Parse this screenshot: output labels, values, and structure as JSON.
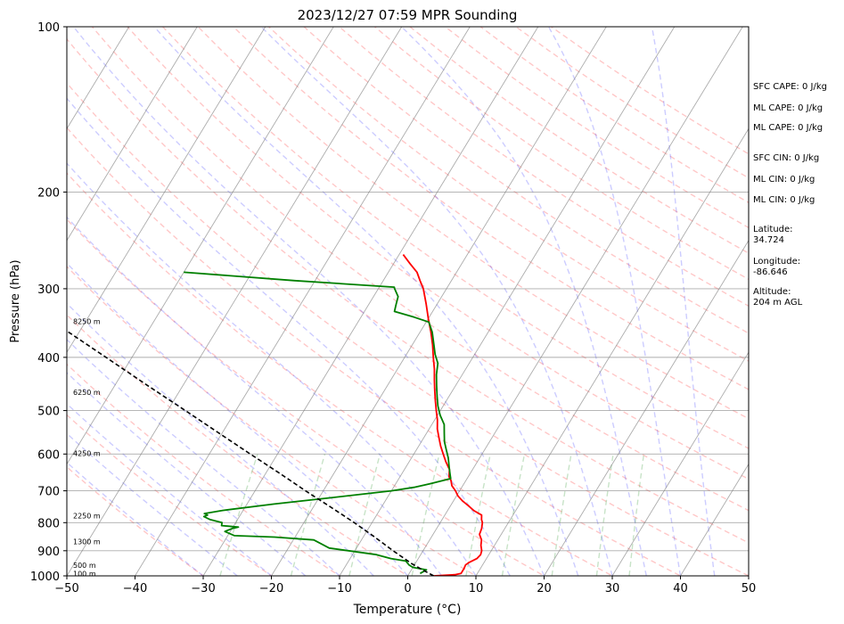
{
  "chart_data": {
    "type": "line",
    "title": "2023/12/27 07:59 MPR Sounding",
    "xlabel": "Temperature (°C)",
    "ylabel": "Pressure (hPa)",
    "xlim": [
      -50,
      50
    ],
    "ylim": [
      1000,
      100
    ],
    "y_scale": "log",
    "skew": true,
    "x_ticks": [
      -50,
      -40,
      -30,
      -20,
      -10,
      0,
      10,
      20,
      30,
      40,
      50
    ],
    "x_tick_labels": [
      "−50",
      "−40",
      "−30",
      "−20",
      "−10",
      "0",
      "10",
      "20",
      "30",
      "40",
      "50"
    ],
    "y_ticks": [
      1000,
      900,
      800,
      700,
      600,
      500,
      400,
      300,
      200,
      100
    ],
    "y_tick_labels": [
      "1000",
      "900",
      "800",
      "700",
      "600",
      "500",
      "400",
      "300",
      "200",
      "100"
    ],
    "grid": true,
    "height_labels": [
      {
        "p": 995,
        "text": "100 m"
      },
      {
        "p": 960,
        "text": "500 m"
      },
      {
        "p": 870,
        "text": "1300 m"
      },
      {
        "p": 780,
        "text": "2250 m"
      },
      {
        "p": 600,
        "text": "4250 m"
      },
      {
        "p": 465,
        "text": "6250 m"
      },
      {
        "p": 345,
        "text": "8250 m"
      }
    ],
    "series": [
      {
        "color": "#ff0000",
        "points": [
          [
            1000,
            3.8
          ],
          [
            995,
            6.8
          ],
          [
            990,
            7.6
          ],
          [
            970,
            7.6
          ],
          [
            955,
            7.5
          ],
          [
            945,
            7.8
          ],
          [
            930,
            8.6
          ],
          [
            915,
            8.8
          ],
          [
            900,
            8.6
          ],
          [
            880,
            8.0
          ],
          [
            860,
            7.6
          ],
          [
            840,
            6.8
          ],
          [
            820,
            6.6
          ],
          [
            800,
            6.2
          ],
          [
            790,
            5.8
          ],
          [
            775,
            5.4
          ],
          [
            760,
            3.8
          ],
          [
            745,
            2.6
          ],
          [
            730,
            1.3
          ],
          [
            715,
            0.2
          ],
          [
            700,
            -0.6
          ],
          [
            685,
            -1.6
          ],
          [
            670,
            -2.2
          ],
          [
            660,
            -2.8
          ],
          [
            640,
            -3.4
          ],
          [
            620,
            -4.6
          ],
          [
            600,
            -5.7
          ],
          [
            580,
            -6.8
          ],
          [
            560,
            -7.8
          ],
          [
            540,
            -8.8
          ],
          [
            520,
            -9.6
          ],
          [
            500,
            -10.6
          ],
          [
            480,
            -11.6
          ],
          [
            460,
            -12.6
          ],
          [
            440,
            -13.6
          ],
          [
            420,
            -14.6
          ],
          [
            400,
            -15.8
          ],
          [
            380,
            -17.0
          ],
          [
            360,
            -18.4
          ],
          [
            340,
            -20.0
          ],
          [
            320,
            -21.6
          ],
          [
            300,
            -23.4
          ],
          [
            290,
            -24.6
          ],
          [
            280,
            -25.8
          ],
          [
            270,
            -27.6
          ],
          [
            260,
            -29.4
          ]
        ]
      },
      {
        "color": "#008000",
        "points": [
          [
            990,
            1.6
          ],
          [
            975,
            2.2
          ],
          [
            965,
            0.0
          ],
          [
            955,
            -0.8
          ],
          [
            940,
            -1.6
          ],
          [
            930,
            -4.0
          ],
          [
            915,
            -6.5
          ],
          [
            890,
            -14.0
          ],
          [
            860,
            -17.0
          ],
          [
            850,
            -23.0
          ],
          [
            845,
            -29.0
          ],
          [
            830,
            -30.8
          ],
          [
            820,
            -30.0
          ],
          [
            815,
            -29.2
          ],
          [
            810,
            -31.8
          ],
          [
            800,
            -32.0
          ],
          [
            790,
            -34.0
          ],
          [
            780,
            -35.2
          ],
          [
            775,
            -34.8
          ],
          [
            770,
            -35.4
          ],
          [
            760,
            -33.0
          ],
          [
            740,
            -26.0
          ],
          [
            720,
            -18.0
          ],
          [
            700,
            -10.0
          ],
          [
            690,
            -7.0
          ],
          [
            680,
            -5.0
          ],
          [
            665,
            -2.4
          ],
          [
            650,
            -3.0
          ],
          [
            630,
            -3.8
          ],
          [
            610,
            -4.6
          ],
          [
            590,
            -5.6
          ],
          [
            570,
            -6.6
          ],
          [
            550,
            -7.4
          ],
          [
            530,
            -8.2
          ],
          [
            510,
            -9.6
          ],
          [
            490,
            -10.8
          ],
          [
            470,
            -11.8
          ],
          [
            450,
            -12.8
          ],
          [
            430,
            -13.8
          ],
          [
            410,
            -14.6
          ],
          [
            395,
            -15.8
          ],
          [
            380,
            -16.8
          ],
          [
            360,
            -18.2
          ],
          [
            345,
            -19.6
          ],
          [
            338,
            -22.2
          ],
          [
            330,
            -25.6
          ],
          [
            320,
            -26.0
          ],
          [
            310,
            -26.4
          ],
          [
            300,
            -27.6
          ],
          [
            298,
            -27.8
          ],
          [
            290,
            -43.0
          ],
          [
            280,
            -60.0
          ]
        ]
      },
      {
        "color": "#000000",
        "dashed": true,
        "points": [
          [
            1000,
            3.8
          ],
          [
            970,
            1.2
          ],
          [
            950,
            -0.5
          ],
          [
            900,
            -4.4
          ],
          [
            850,
            -8.3
          ],
          [
            800,
            -12.6
          ],
          [
            750,
            -17.4
          ],
          [
            700,
            -22.6
          ],
          [
            650,
            -28.0
          ],
          [
            600,
            -34.0
          ],
          [
            550,
            -40.4
          ],
          [
            500,
            -47.4
          ],
          [
            450,
            -55.2
          ],
          [
            400,
            -63.8
          ],
          [
            350,
            -73.6
          ],
          [
            300,
            -84.8
          ],
          [
            270,
            -91.0
          ],
          [
            260,
            -94.0
          ]
        ]
      }
    ]
  },
  "side_panel": {
    "stats": [
      "SFC CAPE: 0 J/kg",
      "ML CAPE: 0 J/kg",
      "ML CAPE: 0 J/kg",
      "SFC CIN: 0 J/kg",
      "ML CIN: 0 J/kg",
      "ML CIN: 0 J/kg"
    ],
    "latitude_label": "Latitude:",
    "latitude_value": "34.724",
    "longitude_label": "Longitude:",
    "longitude_value": "-86.646",
    "altitude_label": "Altitude:",
    "altitude_value": "204 m AGL"
  }
}
